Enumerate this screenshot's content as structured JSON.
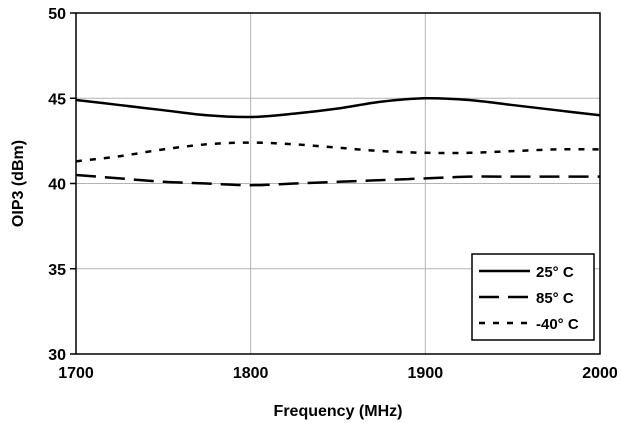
{
  "chart_data": {
    "type": "line",
    "xlabel": "Frequency (MHz)",
    "ylabel": "OIP3 (dBm)",
    "xlim": [
      1700,
      2000
    ],
    "ylim": [
      30,
      50
    ],
    "xticks": [
      "1700",
      "1800",
      "1900",
      "2000"
    ],
    "yticks": [
      "30",
      "35",
      "40",
      "45",
      "50"
    ],
    "grid": true,
    "legend_position": "bottom-right",
    "x": [
      1700,
      1725,
      1750,
      1775,
      1800,
      1825,
      1850,
      1875,
      1900,
      1925,
      1950,
      1975,
      2000
    ],
    "series": [
      {
        "name": "25° C",
        "style": "solid",
        "color": "#000000",
        "values": [
          44.9,
          44.6,
          44.3,
          44.0,
          43.9,
          44.1,
          44.4,
          44.8,
          45.0,
          44.9,
          44.6,
          44.3,
          44.0
        ]
      },
      {
        "name": "85° C",
        "style": "long-dash",
        "color": "#000000",
        "values": [
          40.5,
          40.3,
          40.1,
          40.0,
          39.9,
          40.0,
          40.1,
          40.2,
          40.3,
          40.4,
          40.4,
          40.4,
          40.4
        ]
      },
      {
        "name": "-40° C",
        "style": "short-dash",
        "color": "#000000",
        "values": [
          41.3,
          41.6,
          42.0,
          42.3,
          42.4,
          42.3,
          42.1,
          41.9,
          41.8,
          41.8,
          41.9,
          42.0,
          42.0
        ]
      }
    ]
  }
}
